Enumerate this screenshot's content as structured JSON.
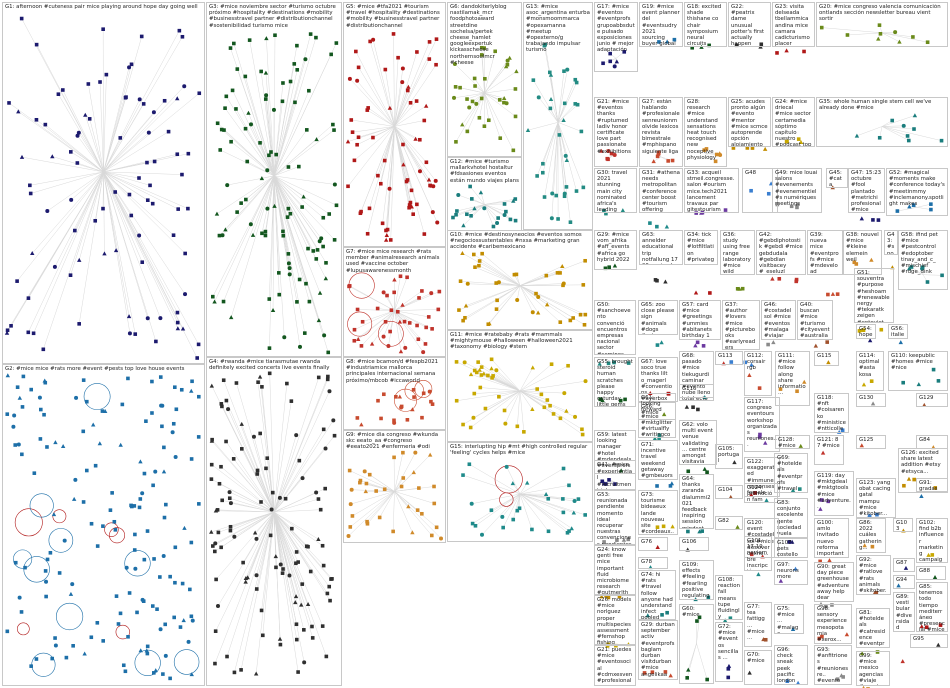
{
  "groups": [
    {
      "id": "G1",
      "caption": "G1: afternoon #cuteness pair mice playing around hope day going well",
      "color": "#1c1a6e"
    },
    {
      "id": "G2",
      "caption": "G2: #mice mice #rats more #event #pests top love house events",
      "color": "#1d6fa8"
    },
    {
      "id": "G3",
      "caption": "G3: #mice noviembre sector #turismo octubre próximo #hospitality #destinations #mobility #businesstravel partner #distributionchannel #sostenibilidad turismo mice",
      "color": "#13571f"
    },
    {
      "id": "G4",
      "caption": "G4: #rwanda #mice tiarasmutae rwanda definitely excited concerts live events finally",
      "color": "#2f2f2f"
    },
    {
      "id": "G5",
      "caption": "G5: #mice #tfa2021 #tourism #travel #hospitality #destinations #mobility #businesstravel partner #distributionchannel",
      "color": "#b01818"
    },
    {
      "id": "G6",
      "caption": "G6: dandokiterlyblog nastilamak_mcr foodphotoaward streetdine sochelsa/pertek cheese_hamlet googleexpertuk kickasscheese northernsoulmcr #cheese",
      "color": "#6a8a1a"
    },
    {
      "id": "G7",
      "caption": "G7: #mice mice research #rats member #animalresearch animals used #vaccine october #lupusawarenessmonth",
      "color": "#c0332b"
    },
    {
      "id": "G8",
      "caption": "G8: #mice bcamon/d #fespb2021 #industriamice mallorca principales internacional semana próximo/mbcob #iccaworld",
      "color": "#c84b2f"
    },
    {
      "id": "G9",
      "caption": "G9: #mice dia congreso #wkunda skc eeato_aa #congreso #eeato2021 #enfermeria #odi",
      "color": "#d08a2a"
    },
    {
      "id": "G10",
      "caption": "G10: #mice #destinosyneocios #eventos somos #negociossustentables #nxsa #marketing gran accidente #caribemexicano",
      "color": "#c28d00"
    },
    {
      "id": "G11",
      "caption": "G11: #mice #ratebaby #rats #mammals #mightymouse #halloween #halloween2021 #taxonomy #biology #stem",
      "color": "#c8a800"
    },
    {
      "id": "G12",
      "caption": "G12: #mice #turismo mallarkvhotel hostaltur #fdsasiones eventos están mundo viajes plans",
      "color": "#1a7d7d"
    },
    {
      "id": "G13",
      "caption": "G13: #mice asoc_argentina enturba #monsmoommarca #opexamanna #meetup #opexterno/g trabajando impulsar turismo",
      "color": "#238b83"
    },
    {
      "id": "G15",
      "caption": "G15: interlupting hip #mt #high controlled regular 'feeling' cycles helps #mice",
      "color": "#1f8a8a"
    }
  ],
  "labels": [
    {
      "id": "G17",
      "text": "G17: #mice #eventos #eventprofs grupoabbsdute pulsado exposiciones junio # mejor adaptación"
    },
    {
      "id": "G19",
      "text": "G19: #mice event planner del #eventsudry 2021 sourcing buyer global"
    },
    {
      "id": "G18",
      "text": "G18: excited shade thishane co chair symposium neural circuits content dependent"
    },
    {
      "id": "G22",
      "text": "G22: #peatrix dame unusual potter's first actually happen latest use more"
    },
    {
      "id": "G23",
      "text": "G23: visita delseada tbellammica andina mice camara cadicturismo placer mostrar venue"
    },
    {
      "id": "G20",
      "text": "G20: #mice congreso valencia comunicación ontlands sección newsletter bureau vient sortir"
    },
    {
      "id": "G21",
      "text": "G21: #mice #eventos thanks #ruptumed ladiv honor certificate love part passionate #exhibitions"
    },
    {
      "id": "G27",
      "text": "G27: están hablando #profesionalesenreunionm olvide lexicos revista bimestrale #mphispano siguiente liga"
    },
    {
      "id": "G28",
      "text": "G28: research #mice understand sensations heat touch recognised new noceptive physiology"
    },
    {
      "id": "G25",
      "text": "G25: acudes pronto algún #evento #mentor #mice scmce autoprende opción alojamiento eligence"
    },
    {
      "id": "G24",
      "text": "G24: #mice driecal #mice sector certamedia sóptimo capítulo nuestro #podcast top"
    },
    {
      "id": "G35",
      "text": "G35: whole human single stem cell we've already done #mice"
    },
    {
      "id": "G30",
      "text": "G30: travel 2021 stunning main city nominated africa's leading business destination"
    },
    {
      "id": "G31",
      "text": "G31: #athena needs metropolitan #conference center boost #tourism offering hepou_marketing mirticumr"
    },
    {
      "id": "G33",
      "text": "G33: acqueil stmeil.congresse.salon #ourism mice.tech2021 lancement travaux par gitestourism daviditenard"
    },
    {
      "id": "G48",
      "text": "G48"
    },
    {
      "id": "G49",
      "text": "G49: mice louai salons #evenements #evenementiel #s numériques meetings"
    },
    {
      "id": "G45",
      "text": "G45: #cata"
    },
    {
      "id": "G47",
      "text": "G47: 15:23 octubre #fool plantado #metrichi profesional #mice #festival creación"
    },
    {
      "id": "G52",
      "text": "G52: #magical #moments make #conference today's #meetinmmy #inclemanony.spotlight makes"
    },
    {
      "id": "G29",
      "text": "G29: #mice vom_afrika #aff_events #africa go hybrid 2022"
    },
    {
      "id": "G63",
      "text": "G63: annelder educational trip notfallung 17 20 noviembre nachfolgender annelderseite global"
    },
    {
      "id": "G34",
      "text": "G34: tick #mice #lotfiltlation #privategroups flatbase #tulldutilastion #mbystour lukawaytatbon"
    },
    {
      "id": "G36",
      "text": "G36: study using free range laboratory #mice wild #pose foraging lifestyle #diet"
    },
    {
      "id": "G42",
      "text": "G42: #gebdiphotostik #gebdi #mice gebdudala #gebdian visitbacey #_eseluzl #turismogebo #gebdiporos"
    },
    {
      "id": "G39",
      "text": "G39: nueva mice #eventprofs #mice #mdeveload #mdeeboard sitte revue informationen inspirationen"
    },
    {
      "id": "G38",
      "text": "G38: nouvel #mice #kleine elemein weil"
    },
    {
      "id": "G43",
      "text": "G43: #snowdon #tell #mice"
    },
    {
      "id": "G51",
      "text": "G51: souventra #purpose #heshoam #renewablenergy #tekaratk zeigen #enteviet zeiginafelschenrerdun #energyemanagement"
    },
    {
      "id": "G58",
      "text": "G58: ifind pet #mice #pestcontrol #edoptober tinay_and_c_ #mischief #rdge_dink"
    },
    {
      "id": "G50",
      "text": "G50: #sanchoevento convenció encuentros empresas nacional sector #seminos #eventosaulto #lonelistener #mylbnet"
    },
    {
      "id": "G65",
      "text": "G65: zoo close please sign #animals #dogs #cats #cartoon #art #birds"
    },
    {
      "id": "G57",
      "text": "G57: card #mice #greetings #ummies #abitanets birthday 1 24 107 #birthday"
    },
    {
      "id": "G37",
      "text": "G37: #author #lovers #mice #picturebooks #earlyreaders #plymesytch #wateurstory #lilhealamy #ladyreads"
    },
    {
      "id": "G46",
      "text": "G46: #costadelsol #mice #eventos #malaga #viajar #eventosvini"
    },
    {
      "id": "G40",
      "text": "G40: buscan #mice #turismo #cityevent #australia #travellers #mice"
    },
    {
      "id": "G54",
      "text": "G54: hope"
    },
    {
      "id": "G56",
      "text": "G56: italien"
    },
    {
      "id": "G55",
      "text": "G55: brought steroid human scratches please happy caturday little gems #caturday"
    },
    {
      "id": "G68",
      "text": "G68: pasado #mice tiekugurdi caminar #evento nube lleno total ecto adaptado personas"
    },
    {
      "id": "G67",
      "text": "G67: love soco true thanks lilt o_magerl #conventions #ayerbox"
    },
    {
      "id": "G66",
      "text": "G66: #mice"
    },
    {
      "id": "G113",
      "text": "G113"
    },
    {
      "id": "G112",
      "text": "G112: corsair rgb"
    },
    {
      "id": "G111",
      "text": "G111: #mice follow along share informatio..."
    },
    {
      "id": "G115",
      "text": "G115"
    },
    {
      "id": "G114",
      "text": "G114: optimal #asta kosa"
    },
    {
      "id": "G110",
      "text": "G110: keepublic #homes #mice #nice"
    },
    {
      "id": "G61",
      "text": "G61: looking forward #mice #mktglitter #virtualfly #writingcom.. #kidlit"
    },
    {
      "id": "G116",
      "text": "G116"
    },
    {
      "id": "G117",
      "text": "G117: congreso eventours workshop organizadas reuniones..."
    },
    {
      "id": "G118",
      "text": "G118: #nft #coisarenko #ministice #ntticollect... #mice"
    },
    {
      "id": "G130",
      "text": "G130"
    },
    {
      "id": "G129",
      "text": "G129"
    },
    {
      "id": "G59",
      "text": "G59: latest looking manager #hotel #mdendeals #eventprofs #experiential #recruitment jobs"
    },
    {
      "id": "G71",
      "text": "G71: incentive travel weekend getaway #gmbeuorsety #incentivetrav..."
    },
    {
      "id": "G62",
      "text": "G62: volo multi event venue validating ... centre amongst visitavia biggest"
    },
    {
      "id": "G105",
      "text": "G105: portugal"
    },
    {
      "id": "G122",
      "text": "G122: exaggerated #immune responses female tests #mice"
    },
    {
      "id": "G128",
      "text": "G128: #mice"
    },
    {
      "id": "G121",
      "text": "G121: 8 7 #mice"
    },
    {
      "id": "G125",
      "text": "G125"
    },
    {
      "id": "G84",
      "text": "G84"
    },
    {
      "id": "G126",
      "text": "G126: excited share latest addition #etsy #etsyca..."
    },
    {
      "id": "G73",
      "text": "G73: tourisme bideaeux lande nouveau site #cordeaux..."
    },
    {
      "id": "G64",
      "text": "G64: thanks zaranda dialummi2021 feedback inspiring session mindset organizing..."
    },
    {
      "id": "G69",
      "text": "G69: #hoteldeals #eventprofs #travel #mice #nosuf..."
    },
    {
      "id": "G124",
      "text": "G124: promoción fam"
    },
    {
      "id": "G119",
      "text": "G119: day #mktgdeal #mktgtools #mice #adventure.."
    },
    {
      "id": "G123",
      "text": "G123: yang obat cacing gatal mampu #mice #kitober..."
    },
    {
      "id": "G53",
      "text": "G53: reunionada pendiente momento ideal recuperar nuestras convenciones pendientes ayudaremos"
    },
    {
      "id": "G104",
      "text": "G104"
    },
    {
      "id": "G83",
      "text": "G83: conjunto excelente gente sociedad vuela #mice #ucm"
    },
    {
      "id": "G91",
      "text": "G91: gradas"
    },
    {
      "id": "G41",
      "text": "G41: #mice"
    },
    {
      "id": "G106",
      "text": "G106"
    },
    {
      "id": "G76",
      "text": "G76"
    },
    {
      "id": "G82",
      "text": "G82"
    },
    {
      "id": "G120",
      "text": "G120: event #costadelsol #mice discover online..."
    },
    {
      "id": "G100",
      "text": "G100: amlo invitado nuevo reforma importante conciliar gathering..."
    },
    {
      "id": "G86",
      "text": "G86: 2022 cuáles gathering..."
    },
    {
      "id": "G103",
      "text": "G103"
    },
    {
      "id": "G102",
      "text": "G102: find b2b influencer marketing campaign..."
    },
    {
      "id": "G109",
      "text": "G109: effects #feeling #fearling positive regulating..."
    },
    {
      "id": "G108",
      "text": "G108: reaction fall means tupe fluidingly househo..."
    },
    {
      "id": "G101",
      "text": "G101: 17-19 noviembre inscripción #turismo..."
    },
    {
      "id": "G97",
      "text": "G97: neurons more"
    },
    {
      "id": "G107",
      "text": "G107: pets costello clue safe vista"
    },
    {
      "id": "G90",
      "text": "G90: great day piece greenhouse #adventure away help dear #eventprofs"
    },
    {
      "id": "G92",
      "text": "G92: #mice #ratlove #rats animals #skitober..."
    },
    {
      "id": "G87",
      "text": "G87"
    },
    {
      "id": "G94",
      "text": "G94"
    },
    {
      "id": "G88",
      "text": "G88"
    },
    {
      "id": "G95",
      "text": "G95"
    },
    {
      "id": "G85",
      "text": "G85: tenemos todo tiempo mediterráneo #presencial #mice"
    },
    {
      "id": "G81",
      "text": "G81: #hoteldeals #catresidence #eventprofs #mice #mont..."
    },
    {
      "id": "G89",
      "text": "G89: vestibular #diversidad #eventos #ucm_#adentro #turismo #mice"
    },
    {
      "id": "G98",
      "text": "G98: sensory experience mesopotamia #xerox..."
    },
    {
      "id": "G99",
      "text": "G99: #mice mexico agencias #viaje #events..."
    },
    {
      "id": "G24b",
      "text": "G24: know genti free mice important fluid microbiome research #gutmerlth #gutmicrobiome"
    },
    {
      "id": "G26",
      "text": "G26: models #mice norlguez proper multispecies assessment #femshop fishing ground gadget"
    },
    {
      "id": "G74",
      "text": "G74: hi #rats #travel follow anyone had understand infect pooled model"
    },
    {
      "id": "G80",
      "text": "G80: nuestra artículo aebpa"
    },
    {
      "id": "G78",
      "text": "G78"
    },
    {
      "id": "G79",
      "text": "G79"
    },
    {
      "id": "G96",
      "text": "G96: check sneak peek pacific london tuesday..."
    },
    {
      "id": "G93",
      "text": "G93: #anfitriones #reunionesre.. #evento #mice..."
    },
    {
      "id": "G77",
      "text": "G77: tea fattigg ... #mice ..."
    },
    {
      "id": "G72",
      "text": "G72: #mice #eventos sencillas ..."
    },
    {
      "id": "G75",
      "text": "G75: #mice ... #malaga ..."
    },
    {
      "id": "G60",
      "text": "G60: #mice"
    },
    {
      "id": "G70",
      "text": "G70: #mice"
    },
    {
      "id": "G44",
      "text": "G44: tiki gift"
    },
    {
      "id": "G21b",
      "text": "G21: puedes #mice #eventosocial #cdmxesven #profesionales comprar además conseguirlo"
    },
    {
      "id": "G25b",
      "text": "G25: hasn't looking ... #mice #eventos 2022"
    },
    {
      "id": "G29b",
      "text": "G29: durban september activ #eventprofs baglam durban visitdurban #mice angelikaa"
    },
    {
      "id": "G32",
      "text": "G32: uses #fmm #rats #mice #rats #skipper"
    }
  ]
}
